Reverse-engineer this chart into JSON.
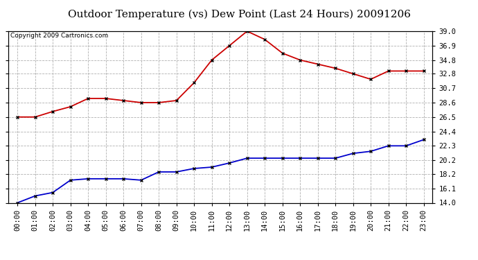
{
  "title": "Outdoor Temperature (vs) Dew Point (Last 24 Hours) 20091206",
  "copyright": "Copyright 2009 Cartronics.com",
  "x_labels": [
    "00:00",
    "01:00",
    "02:00",
    "03:00",
    "04:00",
    "05:00",
    "06:00",
    "07:00",
    "08:00",
    "09:00",
    "10:00",
    "11:00",
    "12:00",
    "13:00",
    "14:00",
    "15:00",
    "16:00",
    "17:00",
    "18:00",
    "19:00",
    "20:00",
    "21:00",
    "22:00",
    "23:00"
  ],
  "red_data": [
    26.5,
    26.5,
    27.3,
    28.0,
    29.2,
    29.2,
    28.9,
    28.6,
    28.6,
    28.9,
    31.5,
    34.8,
    36.9,
    39.0,
    37.8,
    35.8,
    34.8,
    34.2,
    33.6,
    32.8,
    32.0,
    33.2,
    33.2,
    33.2
  ],
  "blue_data": [
    14.0,
    15.0,
    15.5,
    17.3,
    17.5,
    17.5,
    17.5,
    17.3,
    18.5,
    18.5,
    19.0,
    19.2,
    19.8,
    20.5,
    20.5,
    20.5,
    20.5,
    20.5,
    20.5,
    21.2,
    21.5,
    22.3,
    22.3,
    23.2
  ],
  "red_color": "#cc0000",
  "blue_color": "#0000cc",
  "bg_color": "#ffffff",
  "plot_bg": "#ffffff",
  "grid_color": "#b0b0b0",
  "ylim": [
    14.0,
    39.0
  ],
  "yticks": [
    14.0,
    16.1,
    18.2,
    20.2,
    22.3,
    24.4,
    26.5,
    28.6,
    30.7,
    32.8,
    34.8,
    36.9,
    39.0
  ],
  "title_fontsize": 11,
  "copyright_fontsize": 6.5,
  "tick_fontsize": 7.5
}
